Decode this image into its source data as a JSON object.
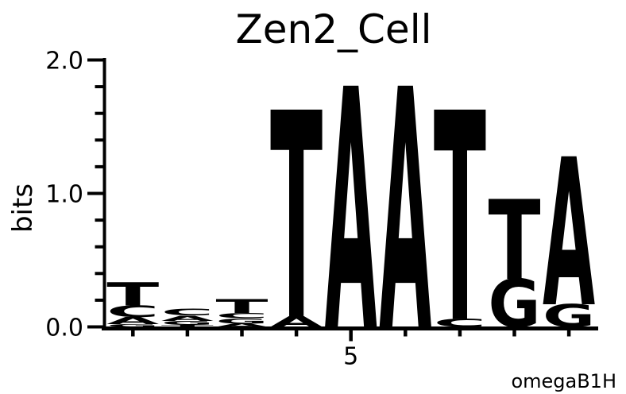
{
  "title": "Zen2_Cell",
  "footer_label": "omegaB1H",
  "chart_data": {
    "type": "sequence_logo",
    "title": "Zen2_Cell",
    "ylabel": "bits",
    "xlabel": "",
    "ylim": [
      0.0,
      2.0
    ],
    "grid": false,
    "ytick_labels": [
      {
        "value": 0.0,
        "label": "0.0"
      },
      {
        "value": 1.0,
        "label": "1.0"
      },
      {
        "value": 2.0,
        "label": "2.0"
      }
    ],
    "ytick_minor_step": 0.2,
    "xtick_labels": [
      {
        "position": 5,
        "label": "5"
      }
    ],
    "annotation": "omegaB1H",
    "background": "#FFFFFF",
    "colors": {
      "A": "#008000",
      "C": "#0000E0",
      "G": "#FFA500",
      "T": "#FF0000"
    },
    "positions": [
      {
        "index": 1,
        "stack": [
          {
            "base": "G",
            "bits": 0.02
          },
          {
            "base": "A",
            "bits": 0.055
          },
          {
            "base": "C",
            "bits": 0.085
          },
          {
            "base": "T",
            "bits": 0.175
          }
        ]
      },
      {
        "index": 2,
        "stack": [
          {
            "base": "T",
            "bits": 0.015
          },
          {
            "base": "G",
            "bits": 0.03
          },
          {
            "base": "A",
            "bits": 0.04
          },
          {
            "base": "C",
            "bits": 0.05
          }
        ]
      },
      {
        "index": 3,
        "stack": [
          {
            "base": "A",
            "bits": 0.025
          },
          {
            "base": "G",
            "bits": 0.04
          },
          {
            "base": "C",
            "bits": 0.04
          },
          {
            "base": "T",
            "bits": 0.105
          }
        ]
      },
      {
        "index": 4,
        "stack": [
          {
            "base": "A",
            "bits": 0.08
          },
          {
            "base": "T",
            "bits": 1.55
          }
        ]
      },
      {
        "index": 5,
        "stack": [
          {
            "base": "A",
            "bits": 1.81
          }
        ]
      },
      {
        "index": 6,
        "stack": [
          {
            "base": "A",
            "bits": 1.81
          }
        ]
      },
      {
        "index": 7,
        "stack": [
          {
            "base": "C",
            "bits": 0.06
          },
          {
            "base": "T",
            "bits": 1.57
          }
        ]
      },
      {
        "index": 8,
        "stack": [
          {
            "base": "G",
            "bits": 0.36
          },
          {
            "base": "T",
            "bits": 0.6
          }
        ]
      },
      {
        "index": 9,
        "stack": [
          {
            "base": "G",
            "bits": 0.17
          },
          {
            "base": "A",
            "bits": 1.11
          }
        ]
      }
    ]
  }
}
